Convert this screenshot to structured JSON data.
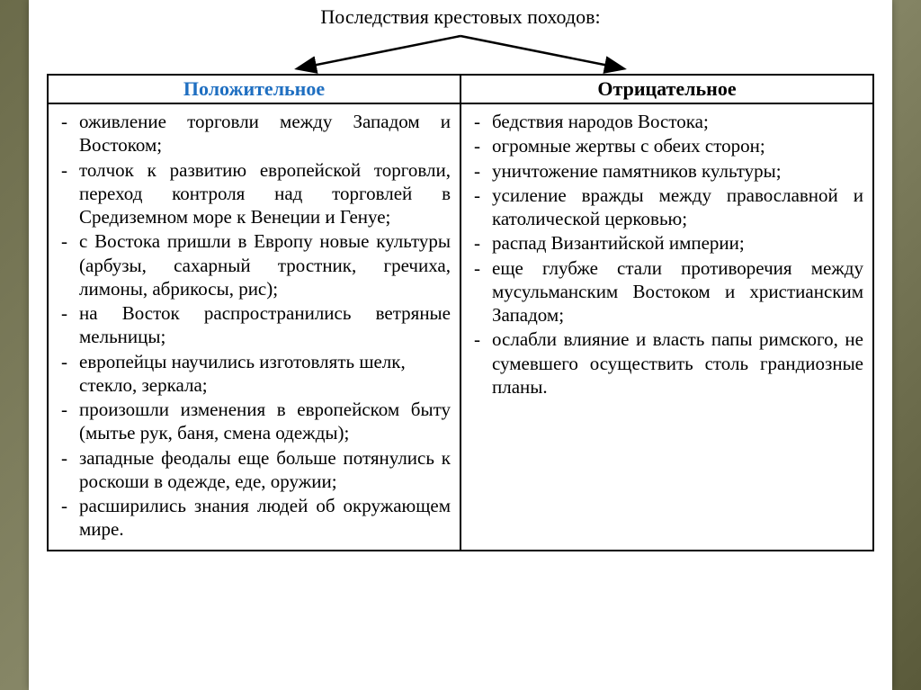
{
  "title": "Последствия крестовых походов:",
  "columns": {
    "positive_header": "Положительное",
    "negative_header": "Отрицательное"
  },
  "positive_items": [
    "оживление торговли между Западом и Востоком;",
    "толчок к развитию европейской торговли, переход контроля над торговлей в Средиземном море к Венеции и Генуе;",
    "с Востока пришли в Европу новые культуры (арбузы, сахарный тростник, гречиха, лимоны, абрикосы, рис);",
    "на Восток распространились ветряные мельницы;",
    "европейцы научились изготовлять шелк, стекло, зеркала;",
    "произошли изменения в европейском быту (мытье рук, баня, смена одежды);",
    "западные феодалы еще больше потянулись к роскоши в одежде, еде, оружии;",
    "расширились знания людей об окружающем мире."
  ],
  "negative_items": [
    "бедствия народов Востока;",
    "огромные жертвы с обеих сторон;",
    "уничтожение памятников культуры;",
    "усиление вражды между православной и католической церковью;",
    "распад Византийской империи;",
    "еще глубже стали противоречия между мусульманским Востоком и христианским Западом;",
    "ослабли влияние и власть папы римского, не сумевшего осуществить столь грандиозные планы."
  ],
  "justify_positive": [
    true,
    true,
    true,
    true,
    false,
    true,
    true,
    true
  ],
  "justify_negative": [
    false,
    false,
    false,
    true,
    false,
    true,
    true,
    false
  ]
}
